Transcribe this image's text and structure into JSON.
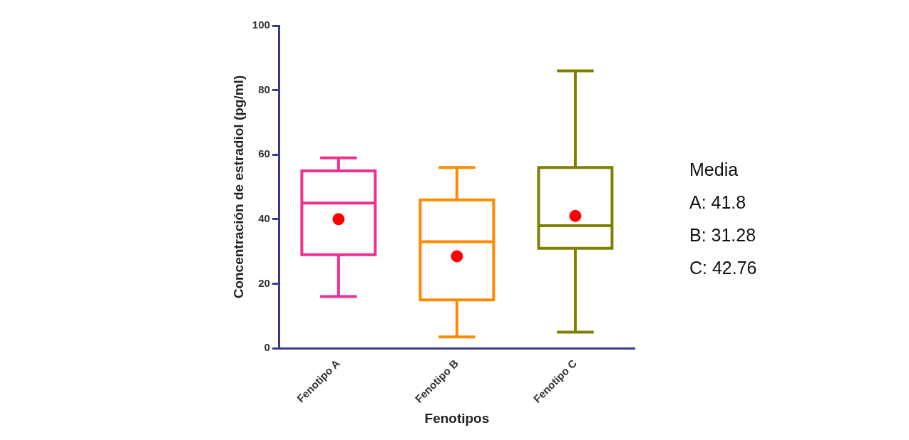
{
  "chart_data": {
    "type": "box",
    "xlabel": "Fenotipos",
    "ylabel": "Concentración de estradiol (pg/ml)",
    "categories": [
      "Fenotipo A",
      "Fenotipo B",
      "Fenotipo C"
    ],
    "colors": [
      "#f0308c",
      "#ff8c00",
      "#808000"
    ],
    "boxes": [
      {
        "low": 16,
        "q1": 29,
        "median": 45,
        "q3": 55,
        "high": 59
      },
      {
        "low": 3.5,
        "q1": 15,
        "median": 33,
        "q3": 46,
        "high": 56
      },
      {
        "low": 5,
        "q1": 31,
        "median": 38,
        "q3": 56,
        "high": 86
      }
    ],
    "series": [
      {
        "type": "scatter",
        "x": [
          "Fenotipo A",
          "Fenotipo B",
          "Fenotipo C"
        ],
        "values": [
          40,
          28.5,
          41
        ],
        "color": "#ff0000"
      }
    ],
    "marker": "circle",
    "ylim": [
      0,
      100
    ],
    "yticks": [
      0,
      20,
      40,
      60,
      80,
      100
    ],
    "grid": false,
    "legend": false,
    "annotations": [
      "Media",
      "A: 41.8",
      "B: 31.28",
      "C: 42.76"
    ]
  }
}
